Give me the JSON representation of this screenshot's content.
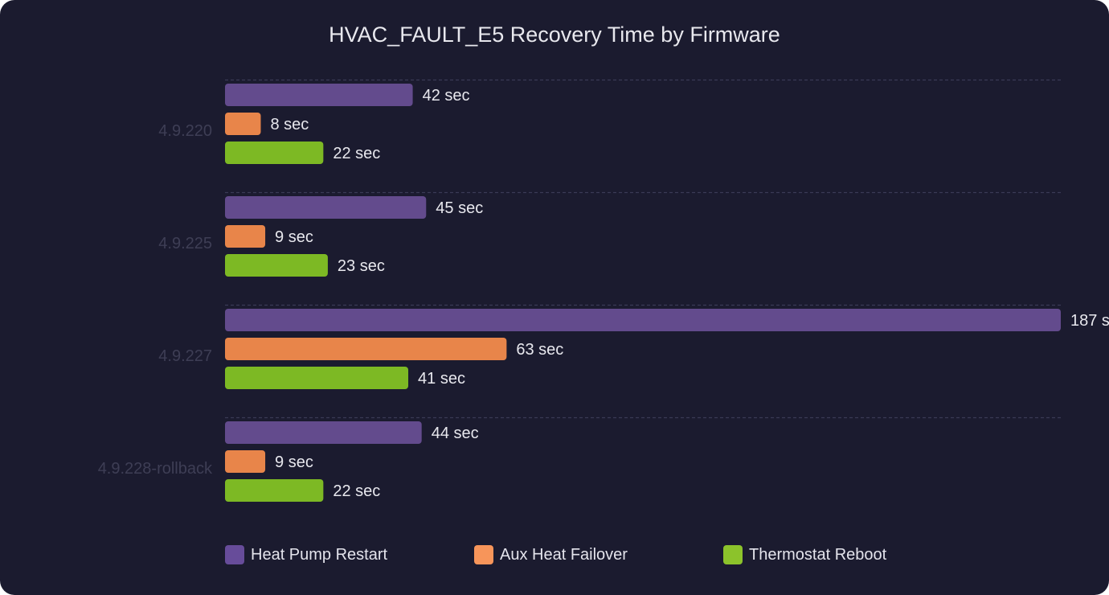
{
  "chart_data": {
    "type": "bar",
    "orientation": "horizontal",
    "title": "HVAC_FAULT_E5 Recovery Time by Firmware",
    "categories": [
      "4.9.220",
      "4.9.225",
      "4.9.227",
      "4.9.228-rollback"
    ],
    "series": [
      {
        "name": "Heat Pump Restart",
        "color": "#634b8d",
        "values": [
          42,
          45,
          187,
          44
        ]
      },
      {
        "name": "Aux Heat Failover",
        "color": "#e8854a",
        "values": [
          8,
          9,
          63,
          9
        ]
      },
      {
        "name": "Thermostat Reboot",
        "color": "#7db924",
        "values": [
          22,
          23,
          41,
          22
        ]
      }
    ],
    "value_suffix": " sec",
    "xlim": [
      0,
      187
    ],
    "grid": "dashed separators between categories",
    "legend_position": "bottom"
  },
  "legend": {
    "items": [
      {
        "label": "Heat Pump Restart",
        "color": "#634b8d"
      },
      {
        "label": "Aux Heat Failover",
        "color": "#e8854a"
      },
      {
        "label": "Thermostat Reboot",
        "color": "#7db924"
      }
    ]
  },
  "colors": {
    "background": "#1b1b2f",
    "text": "#e8e8ee",
    "category_label": "#3e3e55",
    "grid": "#3b3b55",
    "legend_swatches": [
      "#674c9a",
      "#f7955a",
      "#8cc32b"
    ]
  }
}
